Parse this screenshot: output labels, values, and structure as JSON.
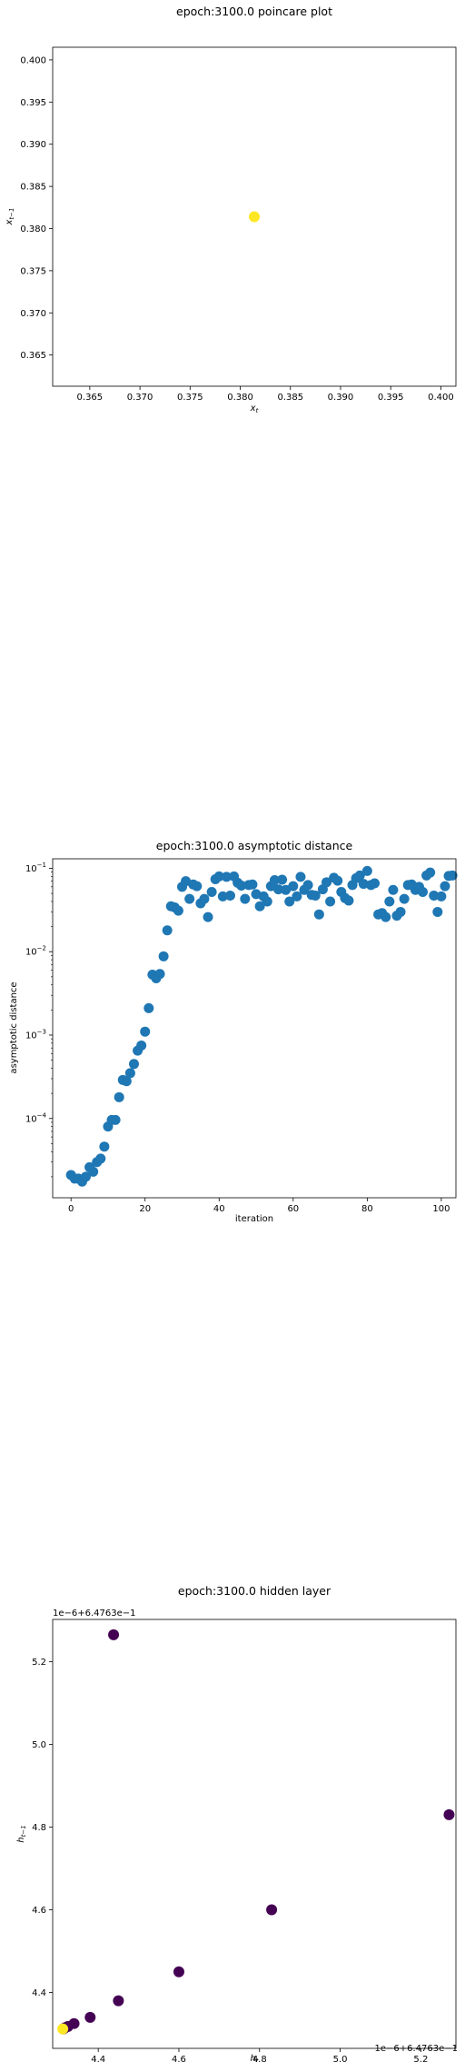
{
  "chart_data": [
    {
      "type": "scatter",
      "title": "epoch:3100.0 poincare plot",
      "xlabel": "x_t",
      "ylabel": "x_{t-1}",
      "xlim": [
        0.3613,
        0.4015
      ],
      "ylim": [
        0.3613,
        0.4015
      ],
      "xticks": [
        "0.365",
        "0.370",
        "0.375",
        "0.380",
        "0.385",
        "0.390",
        "0.395",
        "0.400"
      ],
      "yticks": [
        "0.365",
        "0.370",
        "0.375",
        "0.380",
        "0.385",
        "0.390",
        "0.395",
        "0.400"
      ],
      "grid": false,
      "points": [
        {
          "x": 0.3814,
          "y": 0.3814,
          "color": "#fde725"
        }
      ]
    },
    {
      "type": "scatter",
      "title": "epoch:3100.0 asymptotic distance",
      "xlabel": "iteration",
      "ylabel": "asymptotic distance",
      "yscale": "log",
      "xlim": [
        -4.95,
        103.95
      ],
      "ylim": [
        1.12e-05,
        0.13
      ],
      "xticks": [
        "0",
        "20",
        "40",
        "60",
        "80",
        "100"
      ],
      "yticks": [
        "10^-4",
        "10^-3",
        "10^-2",
        "10^-1"
      ],
      "grid": false,
      "color": "#1f77b4",
      "y": [
        2.1e-05,
        1.9e-05,
        1.9e-05,
        1.75e-05,
        2e-05,
        2.6e-05,
        2.3e-05,
        3e-05,
        3.3e-05,
        4.6e-05,
        8e-05,
        9.6e-05,
        9.6e-05,
        0.00018,
        0.00029,
        0.00028,
        0.00035,
        0.00045,
        0.00065,
        0.00075,
        0.0011,
        0.0021,
        0.0053,
        0.0048,
        0.0054,
        0.0088,
        0.018,
        0.035,
        0.034,
        0.031,
        0.06,
        0.07,
        0.043,
        0.064,
        0.061,
        0.038,
        0.043,
        0.026,
        0.052,
        0.074,
        0.08,
        0.046,
        0.079,
        0.047,
        0.08,
        0.067,
        0.062,
        0.043,
        0.063,
        0.064,
        0.049,
        0.035,
        0.046,
        0.04,
        0.061,
        0.072,
        0.056,
        0.073,
        0.055,
        0.04,
        0.061,
        0.046,
        0.079,
        0.055,
        0.063,
        0.048,
        0.047,
        0.028,
        0.056,
        0.068,
        0.04,
        0.077,
        0.071,
        0.052,
        0.044,
        0.041,
        0.063,
        0.076,
        0.082,
        0.065,
        0.093,
        0.063,
        0.066,
        0.028,
        0.029,
        0.026,
        0.04,
        0.055,
        0.027,
        0.03,
        0.043,
        0.063,
        0.064,
        0.055,
        0.06,
        0.052,
        0.082,
        0.089,
        0.047,
        0.03,
        0.046,
        0.061,
        0.081,
        0.082
      ]
    },
    {
      "type": "scatter",
      "title": "epoch:3100.0 hidden layer",
      "xlabel": "h_t",
      "ylabel": "h_{t-1}",
      "x_offset_label": "1e−6+6.4763e−1",
      "y_offset_label": "1e−6+6.4763e−1",
      "xlim": [
        4.287,
        5.287
      ],
      "ylim": [
        4.265,
        5.302
      ],
      "xticks": [
        "4.4",
        "4.6",
        "4.8",
        "5.0",
        "5.2"
      ],
      "yticks": [
        "4.4",
        "4.6",
        "4.8",
        "5.0",
        "5.2"
      ],
      "grid": false,
      "points": [
        {
          "x": 4.312,
          "y": 4.312,
          "color": "#fde725"
        },
        {
          "x": 4.313,
          "y": 4.312,
          "color": "#440154"
        },
        {
          "x": 4.315,
          "y": 4.313,
          "color": "#440154"
        },
        {
          "x": 4.318,
          "y": 4.315,
          "color": "#440154"
        },
        {
          "x": 4.325,
          "y": 4.318,
          "color": "#440154"
        },
        {
          "x": 4.34,
          "y": 4.325,
          "color": "#440154"
        },
        {
          "x": 4.38,
          "y": 4.34,
          "color": "#440154"
        },
        {
          "x": 4.45,
          "y": 4.38,
          "color": "#440154"
        },
        {
          "x": 4.6,
          "y": 4.45,
          "color": "#440154"
        },
        {
          "x": 4.83,
          "y": 4.6,
          "color": "#440154"
        },
        {
          "x": 5.27,
          "y": 4.83,
          "color": "#440154"
        },
        {
          "x": 4.438,
          "y": 5.265,
          "color": "#440154"
        }
      ]
    }
  ]
}
